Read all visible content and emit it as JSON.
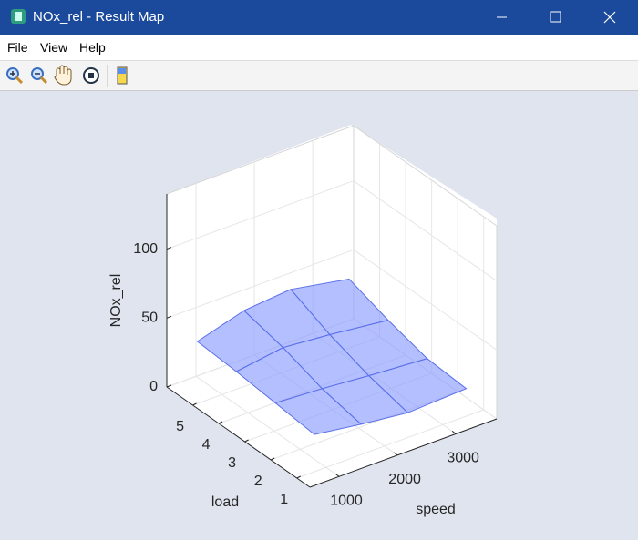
{
  "window": {
    "title": "NOx_rel - Result Map",
    "menu": [
      "File",
      "View",
      "Help"
    ]
  },
  "chart_data": {
    "type": "surface",
    "xlabel": "speed",
    "ylabel": "load",
    "zlabel": "NOx_rel",
    "x": [
      800,
      1600,
      2400,
      3400
    ],
    "y": [
      1,
      2.5,
      4,
      5.5
    ],
    "z": [
      [
        27,
        22,
        18,
        20
      ],
      [
        30,
        28,
        25,
        22
      ],
      [
        33,
        38,
        35,
        30
      ],
      [
        35,
        45,
        48,
        40
      ]
    ],
    "color": "#8c9cff",
    "edge_color": "#5b70ea",
    "xlim": [
      500,
      3700
    ],
    "ylim": [
      0.5,
      6
    ],
    "zlim": [
      0,
      140
    ],
    "xticks": [
      1000,
      2000,
      3000
    ],
    "yticks": [
      1,
      2,
      3,
      4,
      5
    ],
    "zticks": [
      0,
      50,
      100
    ],
    "grid": true
  }
}
